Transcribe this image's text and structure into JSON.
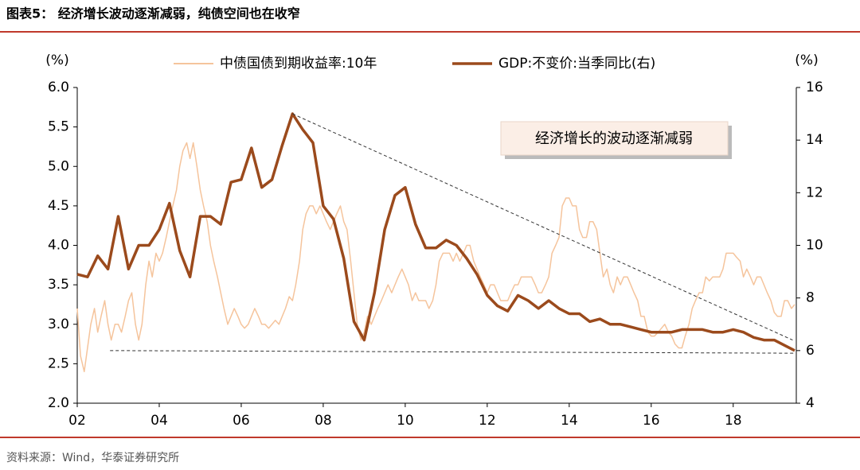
{
  "header": {
    "title": "图表5：  经济增长波动逐渐减弱，纯债空间也在收窄"
  },
  "footer": {
    "source": "资料来源：Wind，华泰证券研究所"
  },
  "chart_data": {
    "type": "line",
    "y_label": "(%)",
    "y2_label": "(%)",
    "annotation": "经济增长的波动逐渐减弱",
    "xlim": [
      2002,
      2019.5
    ],
    "xticks": [
      {
        "value": 2002,
        "label": "02"
      },
      {
        "value": 2004,
        "label": "04"
      },
      {
        "value": 2006,
        "label": "06"
      },
      {
        "value": 2008,
        "label": "08"
      },
      {
        "value": 2010,
        "label": "10"
      },
      {
        "value": 2012,
        "label": "12"
      },
      {
        "value": 2014,
        "label": "14"
      },
      {
        "value": 2016,
        "label": "16"
      },
      {
        "value": 2018,
        "label": "18"
      }
    ],
    "ylim": [
      2.0,
      6.0
    ],
    "yticks": [
      {
        "value": 2.0,
        "label": "2.0"
      },
      {
        "value": 2.5,
        "label": "2.5"
      },
      {
        "value": 3.0,
        "label": "3.0"
      },
      {
        "value": 3.5,
        "label": "3.5"
      },
      {
        "value": 4.0,
        "label": "4.0"
      },
      {
        "value": 4.5,
        "label": "4.5"
      },
      {
        "value": 5.0,
        "label": "5.0"
      },
      {
        "value": 5.5,
        "label": "5.5"
      },
      {
        "value": 6.0,
        "label": "6.0"
      }
    ],
    "y2lim": [
      4,
      16
    ],
    "y2ticks": [
      4,
      6,
      8,
      10,
      12,
      14,
      16
    ],
    "series": [
      {
        "name": "中债国债到期收益率:10年",
        "color": "#f5c49c",
        "axis": "y",
        "x": [
          2002,
          2002.08,
          2002.17,
          2002.25,
          2002.33,
          2002.42,
          2002.5,
          2002.58,
          2002.67,
          2002.75,
          2002.83,
          2002.92,
          2003,
          2003.08,
          2003.17,
          2003.25,
          2003.33,
          2003.42,
          2003.5,
          2003.58,
          2003.67,
          2003.75,
          2003.83,
          2003.92,
          2004,
          2004.08,
          2004.17,
          2004.25,
          2004.33,
          2004.42,
          2004.5,
          2004.58,
          2004.67,
          2004.75,
          2004.83,
          2004.92,
          2005,
          2005.08,
          2005.17,
          2005.25,
          2005.33,
          2005.42,
          2005.5,
          2005.58,
          2005.67,
          2005.75,
          2005.83,
          2005.92,
          2006,
          2006.08,
          2006.17,
          2006.25,
          2006.33,
          2006.42,
          2006.5,
          2006.58,
          2006.67,
          2006.75,
          2006.83,
          2006.92,
          2007,
          2007.08,
          2007.17,
          2007.25,
          2007.33,
          2007.42,
          2007.5,
          2007.58,
          2007.67,
          2007.75,
          2007.83,
          2007.92,
          2008,
          2008.08,
          2008.17,
          2008.25,
          2008.33,
          2008.42,
          2008.5,
          2008.58,
          2008.67,
          2008.75,
          2008.83,
          2008.92,
          2009,
          2009.08,
          2009.17,
          2009.25,
          2009.33,
          2009.42,
          2009.5,
          2009.58,
          2009.67,
          2009.75,
          2009.83,
          2009.92,
          2010,
          2010.08,
          2010.17,
          2010.25,
          2010.33,
          2010.42,
          2010.5,
          2010.58,
          2010.67,
          2010.75,
          2010.83,
          2010.92,
          2011,
          2011.08,
          2011.17,
          2011.25,
          2011.33,
          2011.42,
          2011.5,
          2011.58,
          2011.67,
          2011.75,
          2011.83,
          2011.92,
          2012,
          2012.08,
          2012.17,
          2012.25,
          2012.33,
          2012.42,
          2012.5,
          2012.58,
          2012.67,
          2012.75,
          2012.83,
          2012.92,
          2013,
          2013.08,
          2013.17,
          2013.25,
          2013.33,
          2013.42,
          2013.5,
          2013.58,
          2013.67,
          2013.75,
          2013.83,
          2013.92,
          2014,
          2014.08,
          2014.17,
          2014.25,
          2014.33,
          2014.42,
          2014.5,
          2014.58,
          2014.67,
          2014.75,
          2014.83,
          2014.92,
          2015,
          2015.08,
          2015.17,
          2015.25,
          2015.33,
          2015.42,
          2015.5,
          2015.58,
          2015.67,
          2015.75,
          2015.83,
          2015.92,
          2016,
          2016.08,
          2016.17,
          2016.25,
          2016.33,
          2016.42,
          2016.5,
          2016.58,
          2016.67,
          2016.75,
          2016.83,
          2016.92,
          2017,
          2017.08,
          2017.17,
          2017.25,
          2017.33,
          2017.42,
          2017.5,
          2017.58,
          2017.67,
          2017.75,
          2017.83,
          2017.92,
          2018,
          2018.08,
          2018.17,
          2018.25,
          2018.33,
          2018.42,
          2018.5,
          2018.58,
          2018.67,
          2018.75,
          2018.83,
          2018.92,
          2019,
          2019.08,
          2019.17,
          2019.25,
          2019.33,
          2019.42,
          2019.5
        ],
        "values": [
          3.2,
          2.6,
          2.4,
          2.7,
          3.0,
          3.2,
          2.9,
          3.1,
          3.3,
          3.0,
          2.8,
          3.0,
          3.0,
          2.9,
          3.1,
          3.3,
          3.4,
          3.0,
          2.8,
          3.0,
          3.5,
          3.8,
          3.6,
          3.9,
          3.8,
          3.9,
          4.1,
          4.3,
          4.5,
          4.7,
          5.0,
          5.2,
          5.3,
          5.1,
          5.3,
          5.0,
          4.7,
          4.5,
          4.3,
          4.0,
          3.8,
          3.6,
          3.4,
          3.2,
          3.0,
          3.1,
          3.2,
          3.1,
          3.0,
          2.95,
          3.0,
          3.1,
          3.2,
          3.1,
          3.0,
          3.0,
          2.95,
          3.0,
          3.05,
          3.0,
          3.1,
          3.2,
          3.35,
          3.3,
          3.5,
          3.8,
          4.2,
          4.4,
          4.5,
          4.5,
          4.4,
          4.5,
          4.4,
          4.3,
          4.2,
          4.3,
          4.4,
          4.5,
          4.3,
          4.2,
          3.8,
          3.4,
          3.0,
          2.8,
          2.9,
          3.1,
          3.0,
          3.1,
          3.2,
          3.3,
          3.4,
          3.5,
          3.4,
          3.5,
          3.6,
          3.7,
          3.6,
          3.5,
          3.3,
          3.4,
          3.3,
          3.3,
          3.3,
          3.2,
          3.3,
          3.5,
          3.8,
          3.9,
          3.9,
          3.9,
          3.8,
          3.9,
          3.8,
          3.9,
          4.0,
          4.0,
          3.8,
          3.7,
          3.6,
          3.5,
          3.4,
          3.5,
          3.5,
          3.4,
          3.3,
          3.3,
          3.3,
          3.4,
          3.5,
          3.5,
          3.6,
          3.6,
          3.6,
          3.6,
          3.5,
          3.4,
          3.4,
          3.5,
          3.6,
          3.9,
          4.0,
          4.1,
          4.5,
          4.6,
          4.6,
          4.5,
          4.5,
          4.2,
          4.1,
          4.1,
          4.3,
          4.3,
          4.2,
          3.9,
          3.6,
          3.7,
          3.5,
          3.4,
          3.6,
          3.5,
          3.6,
          3.6,
          3.5,
          3.4,
          3.3,
          3.1,
          3.1,
          2.9,
          2.85,
          2.85,
          2.9,
          2.95,
          3.0,
          2.9,
          2.85,
          2.75,
          2.7,
          2.7,
          2.85,
          3.0,
          3.2,
          3.3,
          3.4,
          3.4,
          3.6,
          3.55,
          3.6,
          3.6,
          3.6,
          3.7,
          3.9,
          3.9,
          3.9,
          3.85,
          3.8,
          3.6,
          3.7,
          3.6,
          3.5,
          3.6,
          3.6,
          3.5,
          3.4,
          3.3,
          3.15,
          3.1,
          3.1,
          3.3,
          3.3,
          3.2,
          3.25
        ]
      },
      {
        "name": "GDP:不变价:当季同比(右)",
        "color": "#9b4a1c",
        "axis": "y2",
        "x": [
          2002,
          2002.25,
          2002.5,
          2002.75,
          2003,
          2003.25,
          2003.5,
          2003.75,
          2004,
          2004.25,
          2004.5,
          2004.75,
          2005,
          2005.25,
          2005.5,
          2005.75,
          2006,
          2006.25,
          2006.5,
          2006.75,
          2007,
          2007.25,
          2007.5,
          2007.75,
          2008,
          2008.25,
          2008.5,
          2008.75,
          2009,
          2009.25,
          2009.5,
          2009.75,
          2010,
          2010.25,
          2010.5,
          2010.75,
          2011,
          2011.25,
          2011.5,
          2011.75,
          2012,
          2012.25,
          2012.5,
          2012.75,
          2013,
          2013.25,
          2013.5,
          2013.75,
          2014,
          2014.25,
          2014.5,
          2014.75,
          2015,
          2015.25,
          2015.5,
          2015.75,
          2016,
          2016.25,
          2016.5,
          2016.75,
          2017,
          2017.25,
          2017.5,
          2017.75,
          2018,
          2018.25,
          2018.5,
          2018.75,
          2019,
          2019.25,
          2019.5
        ],
        "values": [
          8.9,
          8.8,
          9.6,
          9.1,
          11.1,
          9.1,
          10.0,
          10.0,
          10.6,
          11.6,
          9.8,
          8.8,
          11.1,
          11.1,
          10.8,
          12.4,
          12.5,
          13.7,
          12.2,
          12.5,
          13.8,
          15.0,
          14.4,
          13.9,
          11.5,
          11.0,
          9.5,
          7.1,
          6.4,
          8.2,
          10.6,
          11.9,
          12.2,
          10.8,
          9.9,
          9.9,
          10.2,
          10.0,
          9.5,
          8.9,
          8.1,
          7.7,
          7.5,
          8.1,
          7.9,
          7.6,
          7.9,
          7.6,
          7.4,
          7.4,
          7.1,
          7.2,
          7.0,
          7.0,
          6.9,
          6.8,
          6.7,
          6.7,
          6.7,
          6.8,
          6.8,
          6.8,
          6.7,
          6.7,
          6.8,
          6.7,
          6.5,
          6.4,
          6.4,
          6.2,
          6.0
        ]
      }
    ],
    "reference_lines": [
      {
        "axis": "y2",
        "x": [
          2007.25,
          2019.45
        ],
        "y": [
          15.0,
          6.4
        ]
      },
      {
        "axis": "y2",
        "x": [
          2002.8,
          2019.5
        ],
        "y": [
          6.0,
          5.9
        ]
      }
    ]
  }
}
